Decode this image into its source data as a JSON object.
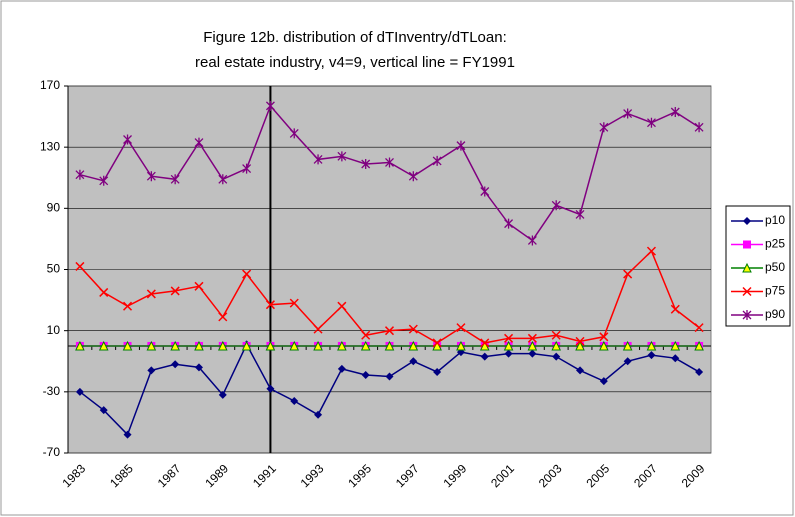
{
  "chart_data": {
    "type": "line",
    "title": [
      "Figure 12b. distribution of dTInventry/dTLoan:",
      "real estate industry, v4=9, vertical line = FY1991"
    ],
    "categories": [
      "1983",
      null,
      "1985",
      null,
      "1987",
      null,
      "1989",
      null,
      "1991",
      null,
      "1993",
      null,
      "1995",
      null,
      "1997",
      null,
      "1999",
      null,
      "2001",
      null,
      "2003",
      null,
      "2005",
      null,
      "2007",
      null,
      "2009"
    ],
    "vline_at": "1991",
    "ylim": [
      -70,
      170
    ],
    "yticks": [
      -70,
      -30,
      10,
      50,
      90,
      130,
      170
    ],
    "grid": true,
    "legend": "right",
    "series": [
      {
        "name": "p10",
        "color": "#000080",
        "marker": "diamond",
        "values": [
          -30,
          -42,
          -58,
          -16,
          -12,
          -14,
          -32,
          1,
          -28,
          -36,
          -45,
          -15,
          -19,
          -20,
          -10,
          -17,
          -4,
          -7,
          -5,
          -5,
          -7,
          -16,
          -23,
          -10,
          -6,
          -8,
          -17
        ]
      },
      {
        "name": "p25",
        "color": "#ff00ff",
        "marker": "square",
        "values": [
          0,
          0,
          0,
          0,
          0,
          0,
          0,
          0,
          0,
          0,
          0,
          0,
          0,
          0,
          0,
          0,
          0,
          0,
          0,
          0,
          0,
          0,
          0,
          0,
          0,
          0,
          0
        ]
      },
      {
        "name": "p50",
        "color": "#008000",
        "marker": "triangle",
        "values": [
          0,
          0,
          0,
          0,
          0,
          0,
          0,
          0,
          0,
          0,
          0,
          0,
          0,
          0,
          0,
          0,
          0,
          0,
          0,
          0,
          0,
          0,
          0,
          0,
          0,
          0,
          0
        ]
      },
      {
        "name": "p75",
        "color": "#ff0000",
        "marker": "x",
        "values": [
          52,
          35,
          26,
          34,
          36,
          39,
          19,
          47,
          27,
          28,
          11,
          26,
          7,
          10,
          11,
          2,
          12,
          2,
          5,
          5,
          7,
          3,
          6,
          47,
          62,
          24,
          12
        ]
      },
      {
        "name": "p90",
        "color": "#800080",
        "marker": "star",
        "values": [
          112,
          108,
          135,
          111,
          109,
          133,
          109,
          116,
          157,
          139,
          122,
          124,
          119,
          120,
          111,
          121,
          131,
          101,
          80,
          69,
          92,
          86,
          143,
          152,
          146,
          153,
          143
        ]
      }
    ]
  }
}
